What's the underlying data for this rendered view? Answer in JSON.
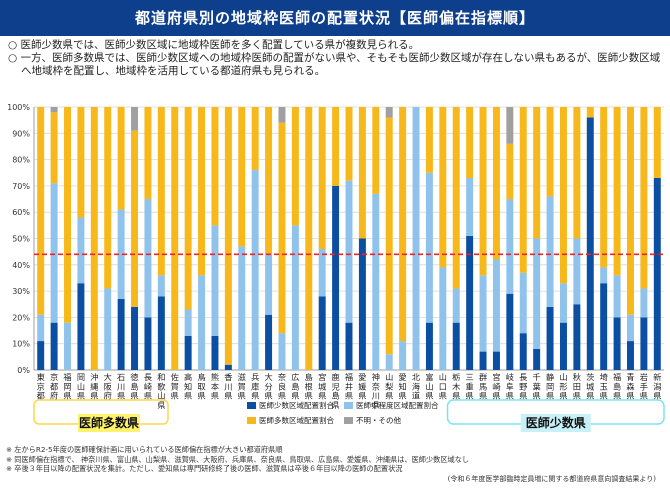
{
  "title": "都道府県別の地域枠医師の配置状況【医師偏在指標順】",
  "notes": [
    "○ 医師少数県では、医師少数区域に地域枠医師を多く配置している県が複数見られる。",
    "○ 一方、医師多数県では、医師少数区域への地域枠医師の配置がない県や、そもそも医師少数区域が存在しない県もあるが、医師少数区域へ地域枠を配置し、地域枠を活用している都道府県も見られる。"
  ],
  "group_labels": {
    "many": "医師多数県",
    "few": "医師少数県"
  },
  "footnotes": [
    "※ 左からR2-5年度の医師確保計画に用いられている医師偏在指標が大きい都道府県順",
    "※ 同医師偏在指標で、 神奈川県、富山県、山梨県、滋賀県、大阪府、兵庫県、奈良県、鳥取県、広島県、愛媛県、沖縄県は、医師少数区域なし",
    "※ 卒後３年目以降の配置状況を集計。ただし、愛知県は専門研修終了後の医師、滋賀県は卒後６年目以降の医師の配置状況"
  ],
  "source": "(令和６年度医学部臨時定員増に関する都道府県意向調査結果より)",
  "colors": {
    "few_area": "#0b4fa2",
    "mid_area": "#8fc3ec",
    "many_area": "#f7b81b",
    "unknown": "#a0a0a0",
    "reference_line": "#e8262a",
    "title_bg": "#0e3f8c"
  },
  "chart_data": {
    "type": "bar",
    "stacked": true,
    "horizontal_reference_line": 44,
    "ylim": [
      0,
      100
    ],
    "ytick_labels": [
      "0%",
      "10%",
      "20%",
      "30%",
      "40%",
      "50%",
      "60%",
      "70%",
      "80%",
      "90%",
      "100%"
    ],
    "categories": [
      "東京都",
      "京都府",
      "福岡県",
      "岡山県",
      "沖縄県",
      "大阪府",
      "石川県",
      "徳島県",
      "長崎県",
      "和歌山県",
      "佐賀県",
      "高知県",
      "鳥取県",
      "熊本県",
      "香川県",
      "滋賀県",
      "兵庫県",
      "大分県",
      "奈良県",
      "広島県",
      "島根県",
      "宮城県",
      "鹿児島県",
      "福井県",
      "愛媛県",
      "神奈川県",
      "山梨県",
      "愛知県",
      "北海道",
      "富山県",
      "山口県",
      "栃木県",
      "三重県",
      "群馬県",
      "宮崎県",
      "岐阜県",
      "長野県",
      "千葉県",
      "静岡県",
      "山形県",
      "秋田県",
      "茨城県",
      "埼玉県",
      "福島県",
      "青森県",
      "岩手県",
      "新潟県"
    ],
    "series": [
      {
        "name": "医師少数区域配置割合",
        "values": [
          11,
          18,
          0,
          33,
          0,
          0,
          27,
          24,
          20,
          28,
          0,
          13,
          0,
          13,
          2,
          0,
          0,
          21,
          0,
          0,
          0,
          28,
          70,
          18,
          50,
          0,
          0,
          0,
          0,
          18,
          0,
          18,
          51,
          7,
          7,
          29,
          14,
          8,
          24,
          18,
          25,
          96,
          33,
          20,
          11,
          20,
          73
        ]
      },
      {
        "name": "医師中程度区域配置割合",
        "values": [
          10,
          53,
          18,
          25,
          0,
          31,
          34,
          0,
          45,
          8,
          0,
          10,
          36,
          42,
          0,
          47,
          76,
          23,
          14,
          55,
          0,
          18,
          0,
          54,
          0,
          67,
          6,
          11,
          100,
          57,
          39,
          13,
          22,
          29,
          35,
          36,
          23,
          42,
          42,
          15,
          25,
          0,
          6,
          16,
          10,
          11,
          0
        ]
      },
      {
        "name": "医師多数区域配置割合",
        "values": [
          79,
          27,
          82,
          42,
          100,
          69,
          39,
          67,
          35,
          64,
          100,
          77,
          64,
          45,
          98,
          53,
          24,
          56,
          80,
          45,
          100,
          54,
          30,
          28,
          50,
          33,
          90,
          89,
          0,
          25,
          61,
          69,
          27,
          64,
          58,
          21,
          63,
          50,
          34,
          67,
          50,
          4,
          61,
          64,
          79,
          69,
          27
        ]
      },
      {
        "name": "不明・その他",
        "values": [
          0,
          2,
          0,
          0,
          0,
          0,
          0,
          9,
          0,
          0,
          0,
          0,
          0,
          0,
          0,
          0,
          0,
          0,
          6,
          0,
          0,
          0,
          0,
          0,
          0,
          0,
          4,
          0,
          0,
          0,
          0,
          0,
          0,
          0,
          0,
          14,
          0,
          0,
          0,
          0,
          0,
          0,
          0,
          0,
          0,
          0,
          0
        ]
      }
    ],
    "legend": [
      "医師少数区域配置割合",
      "医師中程度区域配置割合",
      "医師多数区域配置割合",
      "不明・その他"
    ],
    "legend_placement": "bottom"
  }
}
